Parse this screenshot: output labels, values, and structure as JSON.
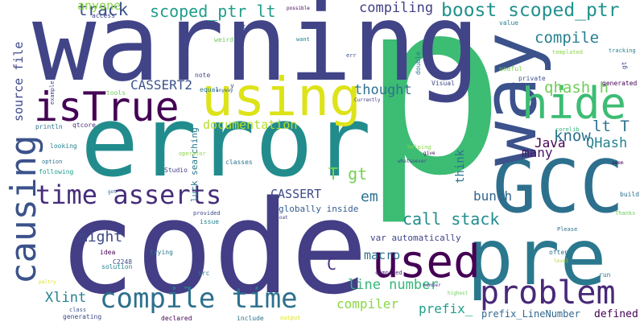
{
  "colors": {
    "background": "#ffffff",
    "palette": [
      "#440154",
      "#482878",
      "#3e4989",
      "#31688e",
      "#26828e",
      "#1f9e89",
      "#35b779",
      "#6ece58",
      "#b5de2b",
      "#fde725"
    ]
  },
  "words": [
    {
      "text": "p",
      "color": "#3dbc74"
    },
    {
      "text": "code",
      "color": "#433e85"
    },
    {
      "text": "warning",
      "color": "#414487"
    },
    {
      "text": "error",
      "color": "#228c8d"
    },
    {
      "text": "GCC",
      "color": "#2d708e"
    },
    {
      "text": "pre",
      "color": "#2a788e"
    },
    {
      "text": "way",
      "color": "#3b528b"
    },
    {
      "text": "using",
      "color": "#dde318"
    },
    {
      "text": "isTrue",
      "color": "#440154"
    },
    {
      "text": "hide",
      "color": "#3dbc74"
    },
    {
      "text": "used",
      "color": "#440154"
    },
    {
      "text": "causing",
      "color": "#3b528b"
    },
    {
      "text": "problem",
      "color": "#482878"
    },
    {
      "text": "time asserts",
      "color": "#472d7b"
    },
    {
      "text": "compile time",
      "color": "#2d708e"
    },
    {
      "text": "scoped_ptr lt",
      "color": "#1f9e89"
    },
    {
      "text": "boost scoped_ptr",
      "color": "#21918c"
    },
    {
      "text": "compile",
      "color": "#27808e"
    },
    {
      "text": "qhash h",
      "color": "#6ece58"
    },
    {
      "text": "track",
      "color": "#3b528b"
    },
    {
      "text": "anyone",
      "color": "#8bd646"
    },
    {
      "text": "compiling",
      "color": "#424086"
    },
    {
      "text": "CASSERT2",
      "color": "#3b528b"
    },
    {
      "text": "thought",
      "color": "#2c728e"
    },
    {
      "text": "documentation",
      "color": "#b5de2b"
    },
    {
      "text": "lt T",
      "color": "#2c728e"
    },
    {
      "text": "QHash",
      "color": "#26828e"
    },
    {
      "text": "Java",
      "color": "#440154"
    },
    {
      "text": "know",
      "color": "#2c728e"
    },
    {
      "text": "many",
      "color": "#471365"
    },
    {
      "text": "T gt",
      "color": "#75d054"
    },
    {
      "text": "CASSERT",
      "color": "#3e4989"
    },
    {
      "text": "em",
      "color": "#2c728e"
    },
    {
      "text": "bunch",
      "color": "#32658e"
    },
    {
      "text": "call stack",
      "color": "#228c8d"
    },
    {
      "text": "might",
      "color": "#3e4989"
    },
    {
      "text": "macro",
      "color": "#2c728e"
    },
    {
      "text": "C",
      "color": "#46327e"
    },
    {
      "text": "line number",
      "color": "#35b779"
    },
    {
      "text": "compiler",
      "color": "#8bd646"
    },
    {
      "text": "Xlint",
      "color": "#26828e"
    },
    {
      "text": "prefix_",
      "color": "#1f9e89"
    },
    {
      "text": "prefix_LineNumber",
      "color": "#31688e"
    },
    {
      "text": "defined",
      "color": "#440154"
    },
    {
      "text": "source file",
      "color": "#3e4989"
    },
    {
      "text": "think",
      "color": "#2c728e"
    },
    {
      "text": "var automatically",
      "color": "#404688"
    },
    {
      "text": "globally inside",
      "color": "#355e8d"
    },
    {
      "text": "luck searching",
      "color": "#2a788e"
    },
    {
      "text": "access",
      "color": "#404688"
    },
    {
      "text": "qt",
      "color": "#3e4989"
    },
    {
      "text": "weird",
      "color": "#6ece58"
    },
    {
      "text": "want",
      "color": "#26828e"
    },
    {
      "text": "possible",
      "color": "#440154"
    },
    {
      "text": "err",
      "color": "#3b528b"
    },
    {
      "text": "double",
      "color": "#2a788e"
    },
    {
      "text": "note",
      "color": "#3e4989"
    },
    {
      "text": "anyway",
      "color": "#355e8d"
    },
    {
      "text": "equal",
      "color": "#2a788e"
    },
    {
      "text": "y",
      "color": "#3b528b"
    },
    {
      "text": "tools",
      "color": "#6ece58"
    },
    {
      "text": "example",
      "color": "#3e4989"
    },
    {
      "text": "println",
      "color": "#2c728e"
    },
    {
      "text": "qtcore",
      "color": "#472d7b"
    },
    {
      "text": "looking",
      "color": "#26828e"
    },
    {
      "text": "option",
      "color": "#2c728e"
    },
    {
      "text": "following",
      "color": "#1f9e89"
    },
    {
      "text": "Studio",
      "color": "#433e85"
    },
    {
      "text": "classes",
      "color": "#2c728e"
    },
    {
      "text": "operator",
      "color": "#8bd646"
    },
    {
      "text": "afloat",
      "color": "#433e85"
    },
    {
      "text": "got",
      "color": "#31688e"
    },
    {
      "text": "provided",
      "color": "#3e4989"
    },
    {
      "text": "issue",
      "color": "#26828e"
    },
    {
      "text": "idea",
      "color": "#440154"
    },
    {
      "text": "trying",
      "color": "#2a788e"
    },
    {
      "text": "C2248",
      "color": "#3e4989"
    },
    {
      "text": "solution",
      "color": "#26828e"
    },
    {
      "text": "src",
      "color": "#2a788e"
    },
    {
      "text": "paltry",
      "color": "#dde318"
    },
    {
      "text": "x",
      "color": "#46327e"
    },
    {
      "text": "class",
      "color": "#3b528b"
    },
    {
      "text": "generating",
      "color": "#3e4989"
    },
    {
      "text": "declared",
      "color": "#440154"
    },
    {
      "text": "include",
      "color": "#2c728e"
    },
    {
      "text": "output",
      "color": "#dde318"
    },
    {
      "text": "highest",
      "color": "#6ece58"
    },
    {
      "text": "member",
      "color": "#3e4989"
    },
    {
      "text": "compiled",
      "color": "#472d7b"
    },
    {
      "text": "often",
      "color": "#2c728e"
    },
    {
      "text": "Please",
      "color": "#2c728e"
    },
    {
      "text": "level",
      "color": "#b5de2b"
    },
    {
      "text": "run",
      "color": "#2a788e"
    },
    {
      "text": "Thanks",
      "color": "#6ece58"
    },
    {
      "text": "build",
      "color": "#2c728e"
    },
    {
      "text": "seem",
      "color": "#440154"
    },
    {
      "text": "corelib",
      "color": "#35b779"
    },
    {
      "text": "give",
      "color": "#440154"
    },
    {
      "text": "helping",
      "color": "#8bd646"
    },
    {
      "text": "whatsoever",
      "color": "#3e4989"
    },
    {
      "text": "Visual",
      "color": "#3e4989"
    },
    {
      "text": "Currently",
      "color": "#433e85"
    },
    {
      "text": "useful",
      "color": "#75d054"
    },
    {
      "text": "private",
      "color": "#3b528b"
    },
    {
      "text": "System",
      "color": "#3e4989"
    },
    {
      "text": "generated",
      "color": "#440154"
    },
    {
      "text": "templated",
      "color": "#8bd646"
    },
    {
      "text": "value",
      "color": "#26828e"
    },
    {
      "text": "gt",
      "color": "#3e4989"
    },
    {
      "text": "tracking",
      "color": "#26828e"
    }
  ]
}
